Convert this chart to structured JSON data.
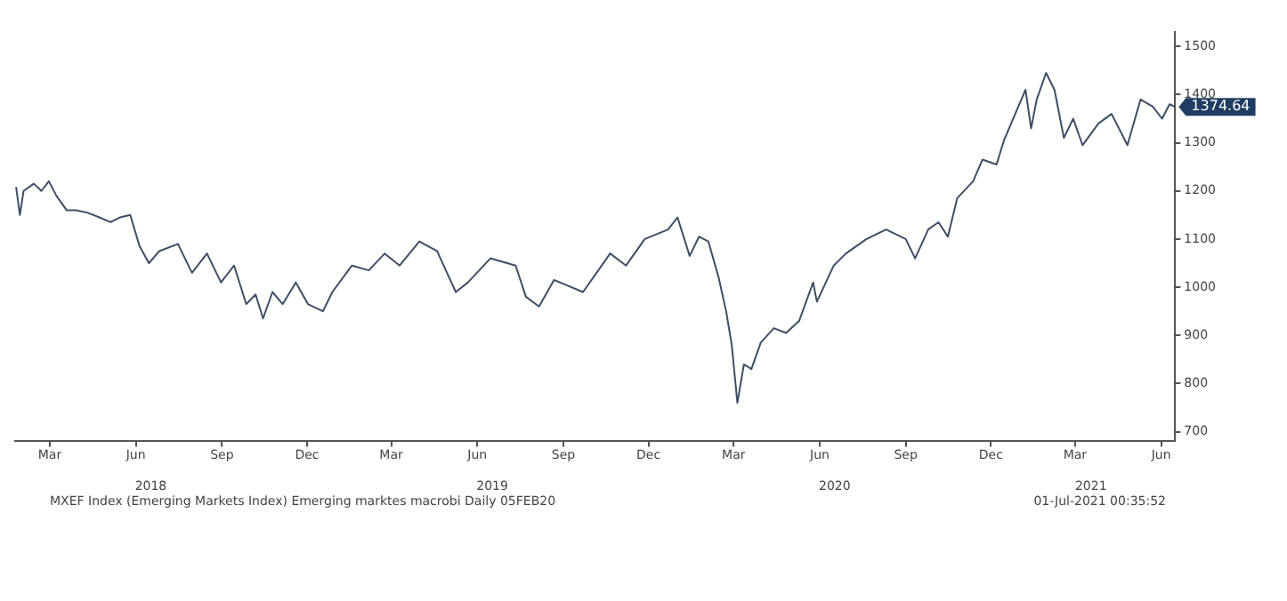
{
  "chart_data": {
    "type": "line",
    "x": [
      "2018-02-07",
      "2018-02-11",
      "2018-02-15",
      "2018-02-26",
      "2018-03-06",
      "2018-03-14",
      "2018-03-22",
      "2018-04-02",
      "2018-04-12",
      "2018-04-24",
      "2018-05-07",
      "2018-05-19",
      "2018-05-29",
      "2018-06-09",
      "2018-06-19",
      "2018-06-29",
      "2018-07-10",
      "2018-07-30",
      "2018-08-14",
      "2018-08-30",
      "2018-09-14",
      "2018-09-28",
      "2018-10-11",
      "2018-10-21",
      "2018-10-29",
      "2018-11-08",
      "2018-11-19",
      "2018-12-03",
      "2018-12-16",
      "2019-01-01",
      "2019-01-11",
      "2019-02-01",
      "2019-02-19",
      "2019-03-08",
      "2019-03-24",
      "2019-04-14",
      "2019-05-03",
      "2019-05-23",
      "2019-06-05",
      "2019-06-29",
      "2019-07-26",
      "2019-08-06",
      "2019-08-20",
      "2019-09-05",
      "2019-10-06",
      "2019-11-04",
      "2019-11-21",
      "2019-12-11",
      "2020-01-05",
      "2020-01-15",
      "2020-01-28",
      "2020-02-07",
      "2020-02-17",
      "2020-02-28",
      "2020-03-07",
      "2020-03-13",
      "2020-03-19",
      "2020-03-26",
      "2020-04-03",
      "2020-04-13",
      "2020-04-27",
      "2020-05-10",
      "2020-05-24",
      "2020-06-08",
      "2020-06-12",
      "2020-06-30",
      "2020-07-13",
      "2020-08-04",
      "2020-08-25",
      "2020-09-15",
      "2020-09-25",
      "2020-10-09",
      "2020-10-20",
      "2020-10-30",
      "2020-11-09",
      "2020-11-26",
      "2020-12-06",
      "2020-12-21",
      "2020-12-29",
      "2021-01-10",
      "2021-01-21",
      "2021-01-27",
      "2021-02-02",
      "2021-02-12",
      "2021-02-21",
      "2021-03-03",
      "2021-03-13",
      "2021-03-23",
      "2021-04-09",
      "2021-04-23",
      "2021-05-10",
      "2021-05-24",
      "2021-06-06",
      "2021-06-16",
      "2021-06-24",
      "2021-06-30"
    ],
    "series": [
      {
        "color": "#3d4f66",
        "values": [
          1208,
          1150,
          1200,
          1215,
          1200,
          1220,
          1190,
          1160,
          1160,
          1155,
          1145,
          1135,
          1145,
          1150,
          1085,
          1050,
          1075,
          1090,
          1030,
          1070,
          1010,
          1045,
          965,
          985,
          935,
          990,
          965,
          1010,
          965,
          950,
          990,
          1045,
          1035,
          1070,
          1045,
          1095,
          1075,
          990,
          1010,
          1060,
          1045,
          980,
          960,
          1015,
          990,
          1070,
          1045,
          1100,
          1120,
          1145,
          1065,
          1105,
          1095,
          1020,
          950,
          880,
          760,
          840,
          830,
          885,
          915,
          905,
          930,
          1010,
          970,
          1045,
          1070,
          1100,
          1120,
          1100,
          1060,
          1120,
          1135,
          1105,
          1185,
          1220,
          1265,
          1255,
          1305,
          1360,
          1410,
          1330,
          1390,
          1445,
          1410,
          1310,
          1350,
          1295,
          1340,
          1360,
          1295,
          1390,
          1375,
          1350,
          1380,
          1374.64
        ]
      }
    ],
    "xlim": [
      "2018-02-05",
      "2021-06-30"
    ],
    "xticks": [
      {
        "value": "2018-03-15",
        "label": "Mar"
      },
      {
        "value": "2018-06-15",
        "label": "Jun"
      },
      {
        "value": "2018-09-15",
        "label": "Sep"
      },
      {
        "value": "2018-12-15",
        "label": "Dec"
      },
      {
        "value": "2019-03-15",
        "label": "Mar"
      },
      {
        "value": "2019-06-15",
        "label": "Jun"
      },
      {
        "value": "2019-09-15",
        "label": "Sep"
      },
      {
        "value": "2019-12-15",
        "label": "Dec"
      },
      {
        "value": "2020-03-15",
        "label": "Mar"
      },
      {
        "value": "2020-06-15",
        "label": "Jun"
      },
      {
        "value": "2020-09-15",
        "label": "Sep"
      },
      {
        "value": "2020-12-15",
        "label": "Dec"
      },
      {
        "value": "2021-03-15",
        "label": "Mar"
      },
      {
        "value": "2021-06-15",
        "label": "Jun"
      }
    ],
    "x2lim": [
      "2018-02-05",
      "2021-06-30"
    ],
    "x2ticks": [
      {
        "value": "2018-07-01",
        "label": "2018"
      },
      {
        "value": "2019-07-01",
        "label": "2019"
      },
      {
        "value": "2020-07-01",
        "label": "2020"
      },
      {
        "value": "2021-04-01",
        "label": "2021"
      }
    ],
    "ylim": [
      680,
      1530
    ],
    "yticks": [
      700,
      800,
      900,
      1000,
      1100,
      1200,
      1300,
      1400,
      1500
    ],
    "annotations": [
      {
        "text": "1374.64",
        "x": "2021-06-30",
        "y": 1374.64
      },
      "MXEF Index (Emerging Markets Index) Emerging marktes macrobi  Daily 05FEB20",
      "01-Jul-2021 00:35:52"
    ]
  }
}
